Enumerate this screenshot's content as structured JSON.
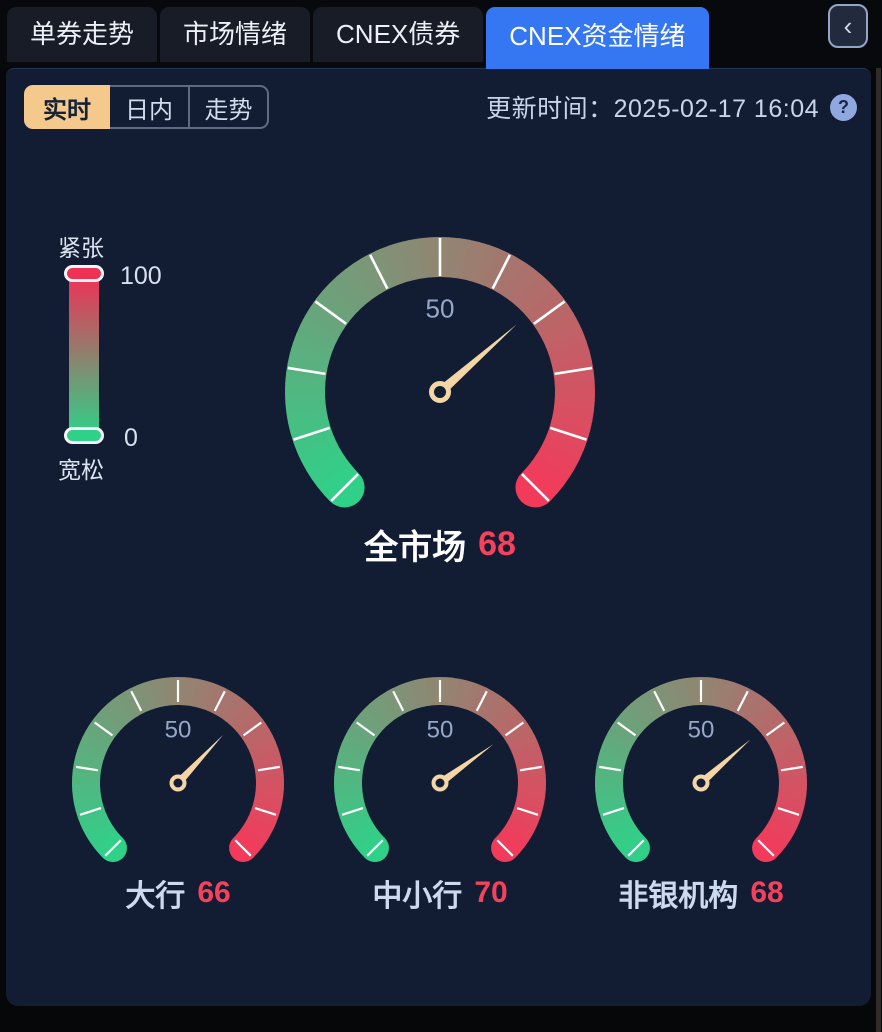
{
  "header": {
    "tabs": [
      {
        "label": "单券走势",
        "active": false
      },
      {
        "label": "市场情绪",
        "active": false
      },
      {
        "label": "CNEX债券",
        "active": false
      },
      {
        "label": "CNEX资金情绪",
        "active": true
      }
    ],
    "collapse_icon": "‹"
  },
  "toolbar": {
    "subtabs": [
      {
        "label": "实时",
        "active": true
      },
      {
        "label": "日内",
        "active": false
      },
      {
        "label": "走势",
        "active": false
      }
    ],
    "update_text": "更新时间：2025-02-17 16:04",
    "help_icon": "?"
  },
  "legend": {
    "top_label": "紧张",
    "bottom_label": "宽松",
    "max": "100",
    "min": "0"
  },
  "chart_data": {
    "type": "gauge",
    "scale": {
      "min": 0,
      "max": 100,
      "split_number": 10,
      "mid_tick_label": "50",
      "start_angle": 225,
      "end_angle": -45,
      "low_meaning": "宽松",
      "high_meaning": "紧张"
    },
    "gauges": [
      {
        "name": "全市场",
        "value": 68,
        "size": "large"
      },
      {
        "name": "大行",
        "value": 66,
        "size": "small"
      },
      {
        "name": "中小行",
        "value": 70,
        "size": "small"
      },
      {
        "name": "非银机构",
        "value": 68,
        "size": "small"
      }
    ]
  },
  "colors": {
    "panel_bg": "#121d33",
    "active_tab": "#3577f2",
    "subtab_active_bg": "#f5c88c",
    "gauge_low": "#2fd189",
    "gauge_high": "#f23b5b",
    "needle": "#f3d5a6",
    "tick": "#ffffff",
    "axis_label": "#96a7c9",
    "value_red": "#f5415c"
  }
}
